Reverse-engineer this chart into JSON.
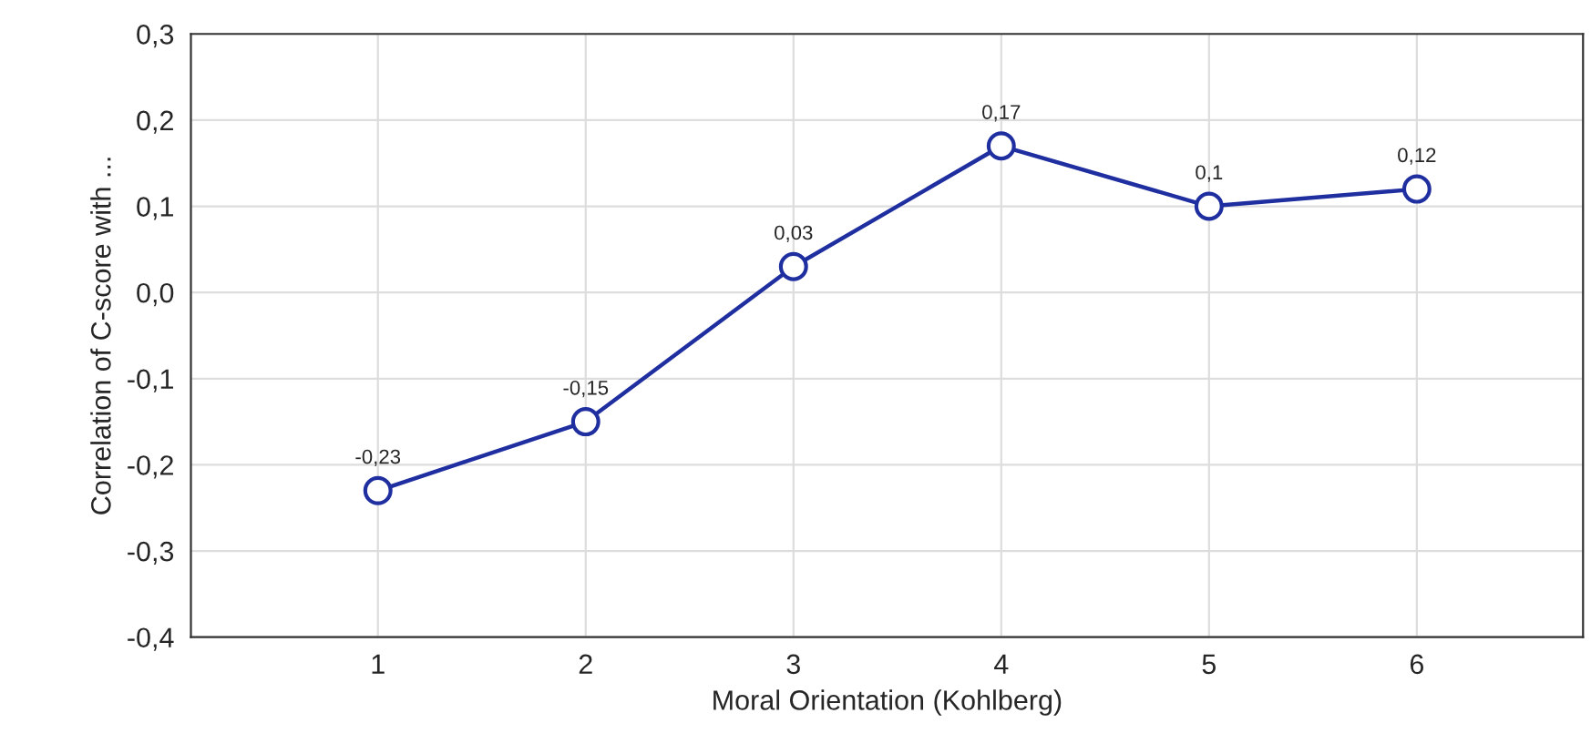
{
  "chart_data": {
    "type": "line",
    "xlabel": "Moral Orientation (Kohlberg)",
    "ylabel": "Correlation of C-score with ...",
    "x": [
      1,
      2,
      3,
      4,
      5,
      6
    ],
    "series": [
      {
        "color": "#1f2fa0",
        "values": [
          -0.23,
          -0.15,
          0.03,
          0.17,
          0.1,
          0.12
        ],
        "value_labels": [
          "-0,23",
          "-0,15",
          "0,03",
          "0,17",
          "0,1",
          "0,12"
        ]
      }
    ],
    "xlim": [
      0.1,
      6.8
    ],
    "xticks": [
      1,
      2,
      3,
      4,
      5,
      6
    ],
    "ylim": [
      -0.4,
      0.3
    ],
    "yticks": [
      {
        "value": -0.4,
        "label": "-0,4"
      },
      {
        "value": -0.3,
        "label": "-0,3"
      },
      {
        "value": -0.2,
        "label": "-0,2"
      },
      {
        "value": -0.1,
        "label": "-0,1"
      },
      {
        "value": 0.0,
        "label": "0,0"
      },
      {
        "value": 0.1,
        "label": "0,1"
      },
      {
        "value": 0.2,
        "label": "0,2"
      },
      {
        "value": 0.3,
        "label": "0,3"
      }
    ],
    "grid": true,
    "marker": "circle",
    "line_style": "solid"
  }
}
